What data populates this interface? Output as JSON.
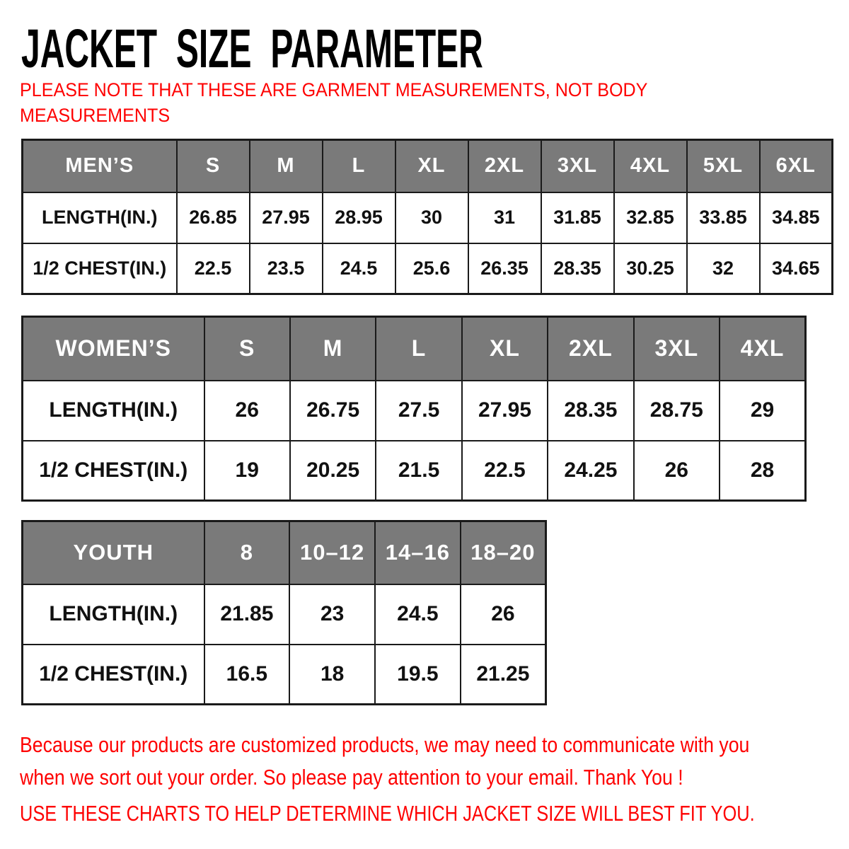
{
  "page": {
    "title": "JACKET SIZE PARAMETER",
    "note": {
      "lines": [
        "PLEASE NOTE THAT THESE ARE GARMENT MEASUREMENTS, NOT BODY",
        "MEASUREMENTS"
      ]
    },
    "footer": {
      "paragraph_lines": [
        "Because our products are customized products, we may need to communicate with you",
        "when we sort out your order. So please pay attention to your email. Thank You !"
      ],
      "charts_line": "USE THESE CHARTS TO HELP DETERMINE WHICH JACKET SIZE WILL BEST FIT YOU."
    },
    "colors": {
      "accent_red": "#fe0000",
      "header_gray": "#7a7a7a",
      "border": "#1a1a1a",
      "text_black": "#000000",
      "header_text": "#ffffff"
    }
  },
  "tables": [
    {
      "id": "mens",
      "name": "MEN’S",
      "sizes": [
        "S",
        "M",
        "L",
        "XL",
        "2XL",
        "3XL",
        "4XL",
        "5XL",
        "6XL"
      ],
      "rows": [
        {
          "label": "LENGTH(IN.)",
          "values": [
            "26.85",
            "27.95",
            "28.95",
            "30",
            "31",
            "31.85",
            "32.85",
            "33.85",
            "34.85"
          ]
        },
        {
          "label": "1/2 CHEST(IN.)",
          "values": [
            "22.5",
            "23.5",
            "24.5",
            "25.6",
            "26.35",
            "28.35",
            "30.25",
            "32",
            "34.65"
          ]
        }
      ]
    },
    {
      "id": "womens",
      "name": "WOMEN’S",
      "sizes": [
        "S",
        "M",
        "L",
        "XL",
        "2XL",
        "3XL",
        "4XL"
      ],
      "rows": [
        {
          "label": "LENGTH(IN.)",
          "values": [
            "26",
            "26.75",
            "27.5",
            "27.95",
            "28.35",
            "28.75",
            "29"
          ]
        },
        {
          "label": "1/2 CHEST(IN.)",
          "values": [
            "19",
            "20.25",
            "21.5",
            "22.5",
            "24.25",
            "26",
            "28"
          ]
        }
      ]
    },
    {
      "id": "youth",
      "name": "YOUTH",
      "sizes": [
        "8",
        "10–12",
        "14–16",
        "18–20"
      ],
      "rows": [
        {
          "label": "LENGTH(IN.)",
          "values": [
            "21.85",
            "23",
            "24.5",
            "26"
          ]
        },
        {
          "label": "1/2 CHEST(IN.)",
          "values": [
            "16.5",
            "18",
            "19.5",
            "21.25"
          ]
        }
      ]
    }
  ]
}
